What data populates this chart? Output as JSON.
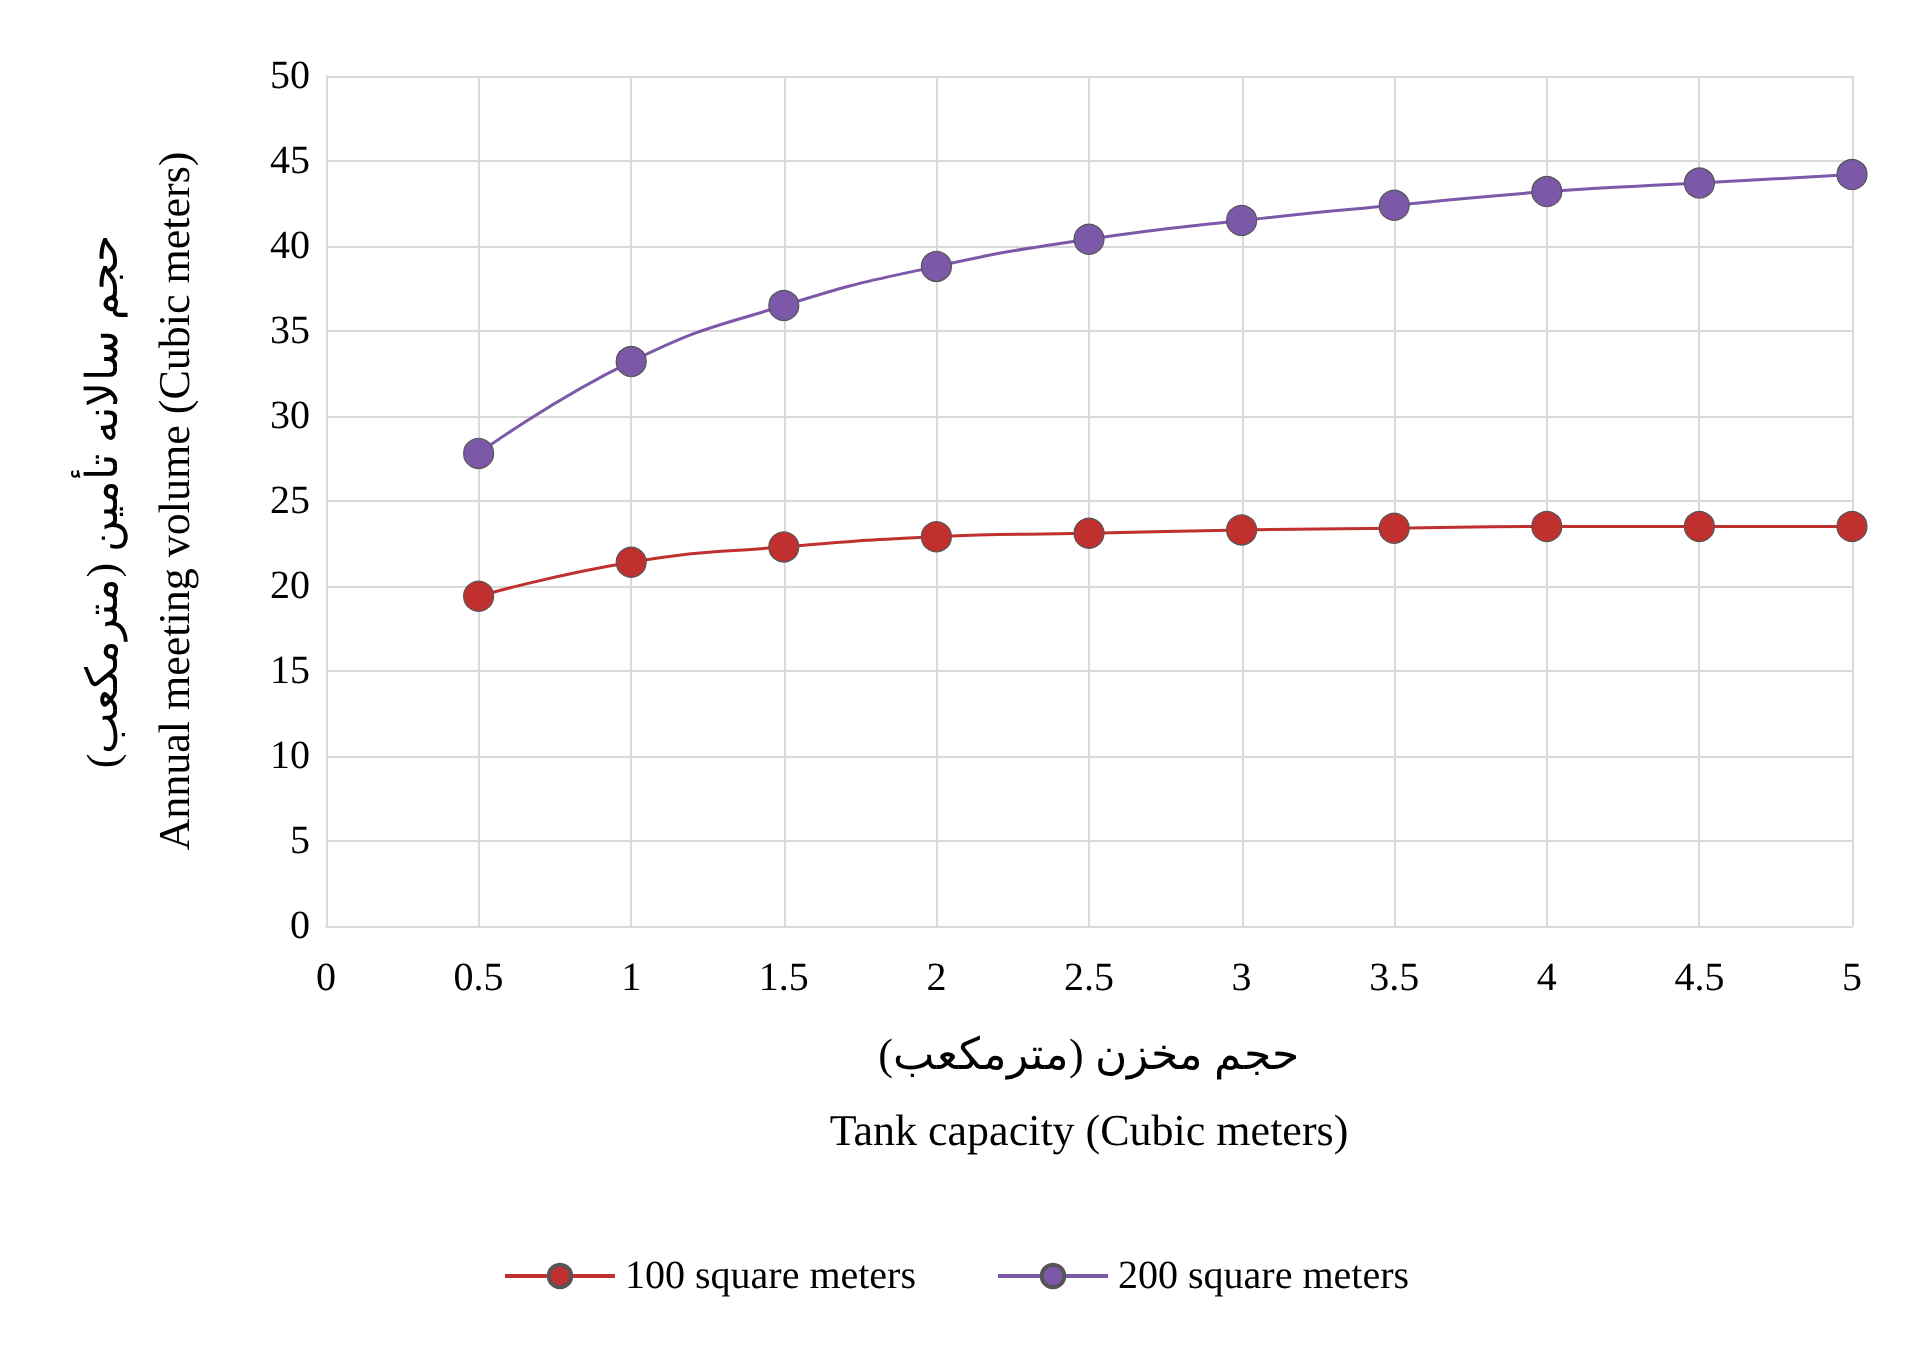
{
  "chart_data": {
    "type": "line",
    "xlabel": "حجم مخزن (مترمکعب)\nTank capacity (Cubic meters)",
    "ylabel": "حجم سالانه تأمین (مترمکعب)\nAnnual meeting volume (Cubic meters)",
    "x": [
      0.5,
      1,
      1.5,
      2,
      2.5,
      3,
      3.5,
      4,
      4.5,
      5
    ],
    "series": [
      {
        "name": "100 square meters",
        "color": "#c0302e",
        "values": [
          19.4,
          21.4,
          22.3,
          22.9,
          23.1,
          23.3,
          23.4,
          23.5,
          23.5,
          23.5
        ]
      },
      {
        "name": "200 square meters",
        "color": "#7b59a8",
        "values": [
          27.8,
          33.2,
          36.5,
          38.8,
          40.4,
          41.5,
          42.4,
          43.2,
          43.7,
          44.2
        ]
      }
    ],
    "xlim": [
      0,
      5
    ],
    "xticks": [
      0,
      0.5,
      1,
      1.5,
      2,
      2.5,
      3,
      3.5,
      4,
      4.5,
      5
    ],
    "ylim": [
      0,
      50
    ],
    "yticks": [
      0,
      5,
      10,
      15,
      20,
      25,
      30,
      35,
      40,
      45,
      50
    ],
    "grid": true,
    "legend": "bottom",
    "marker": "circle",
    "line_style": "solid"
  }
}
